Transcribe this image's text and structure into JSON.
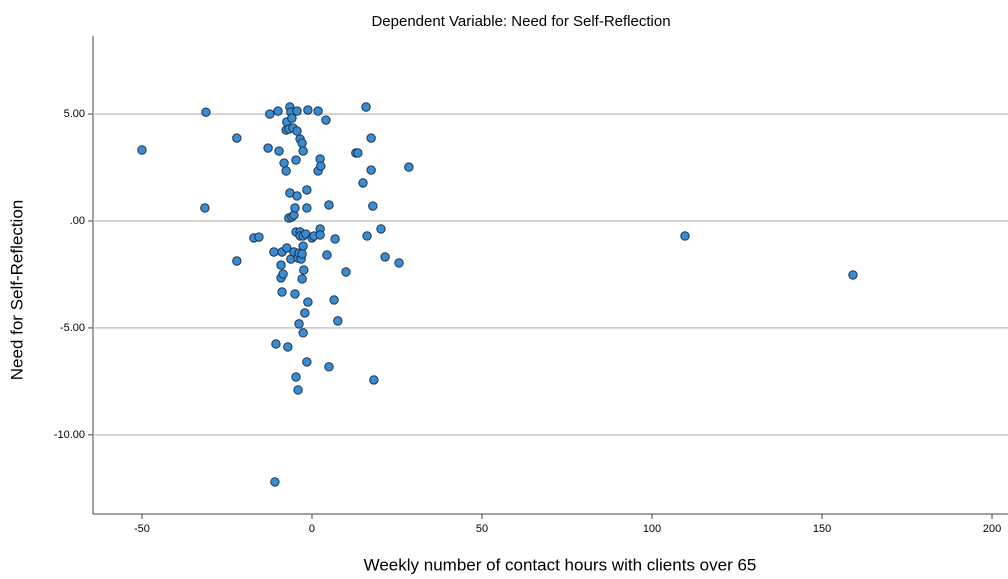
{
  "chart_data": {
    "type": "scatter",
    "title": "Dependent Variable: Need for Self-Reflection",
    "x_label": "Weekly number of contact hours with clients over 65",
    "y_label": "Need for Self-Reflection",
    "color": "#3b8bd0",
    "edge_color": "#1a3550",
    "grid": true,
    "xlim": [
      -64.4,
      204.7
    ],
    "xticks": [
      -50,
      0,
      50,
      100,
      150,
      200
    ],
    "ylim": [
      -13.7,
      8.65
    ],
    "yticks": [
      {
        "value": 5,
        "label": "5.00"
      },
      {
        "value": 0,
        "label": ".00"
      },
      {
        "value": -5,
        "label": "-5.00"
      },
      {
        "value": -10,
        "label": "-10.00"
      }
    ],
    "x": [
      -50,
      -31.2,
      -31.5,
      -22.1,
      -22.1,
      -17.1,
      -15.6,
      -12.9,
      -12.4,
      -10,
      -9.7,
      -11.2,
      -10.6,
      -10.9,
      -9.1,
      -8.8,
      -9.1,
      -8.8,
      -8.5,
      -8.2,
      -7.6,
      -7.4,
      -7.6,
      -7.4,
      -7.1,
      -6.5,
      -6.8,
      -6.5,
      -6.2,
      -6.8,
      -5.9,
      -5.6,
      -6.2,
      -5.9,
      -5.3,
      -5.3,
      -5,
      -5,
      -4.7,
      -4.7,
      -4.7,
      -4.4,
      -4.4,
      -4.4,
      -4.1,
      -4.1,
      -3.8,
      -3.8,
      -3.5,
      -3.5,
      -3.5,
      -3.2,
      -2.9,
      -2.9,
      -2.9,
      -2.6,
      -2.6,
      -2.6,
      -2.6,
      -2.4,
      -2.1,
      -1.8,
      -1.5,
      -1.5,
      -1.2,
      -1.5,
      -1.2,
      0,
      0.6,
      1.8,
      1.8,
      2.4,
      2.4,
      2.4,
      2.6,
      4.1,
      4.4,
      5,
      5,
      6.5,
      6.8,
      7.6,
      10,
      12.9,
      13.5,
      15,
      15.9,
      16.2,
      17.4,
      17.4,
      17.9,
      18.2,
      20.3,
      21.5,
      25.6,
      28.5,
      109.7,
      159.1
    ],
    "values": [
      3.32,
      5.09,
      0.61,
      3.88,
      -1.87,
      -0.79,
      -0.75,
      3.41,
      5,
      5.14,
      3.27,
      -1.45,
      -5.75,
      -12.2,
      -2.06,
      -1.45,
      -2.66,
      -3.32,
      -2.48,
      2.71,
      4.25,
      4.63,
      2.34,
      -1.26,
      -5.89,
      5.33,
      0.14,
      1.31,
      5.09,
      4.3,
      4.81,
      4.35,
      -1.78,
      0.19,
      -1.45,
      0.28,
      -3.41,
      0.61,
      2.85,
      -0.51,
      -7.29,
      5.14,
      4.21,
      1.17,
      -1.73,
      -7.9,
      -4.81,
      -1.5,
      -0.51,
      3.83,
      -0.7,
      -1.78,
      3.64,
      -1.54,
      -2.71,
      3.27,
      -0.7,
      -1.17,
      -5.23,
      -2.29,
      -4.3,
      -0.61,
      0.61,
      1.45,
      -3.79,
      -6.59,
      5.19,
      -0.79,
      -0.7,
      5.14,
      2.34,
      2.9,
      -0.37,
      -0.65,
      2.57,
      4.72,
      -1.59,
      0.75,
      -6.82,
      -3.69,
      -0.84,
      -4.67,
      -2.38,
      3.18,
      3.18,
      1.78,
      5.33,
      -0.7,
      3.88,
      2.38,
      0.7,
      -7.43,
      -0.37,
      -1.68,
      -1.96,
      2.52,
      -0.7,
      -2.52
    ]
  }
}
